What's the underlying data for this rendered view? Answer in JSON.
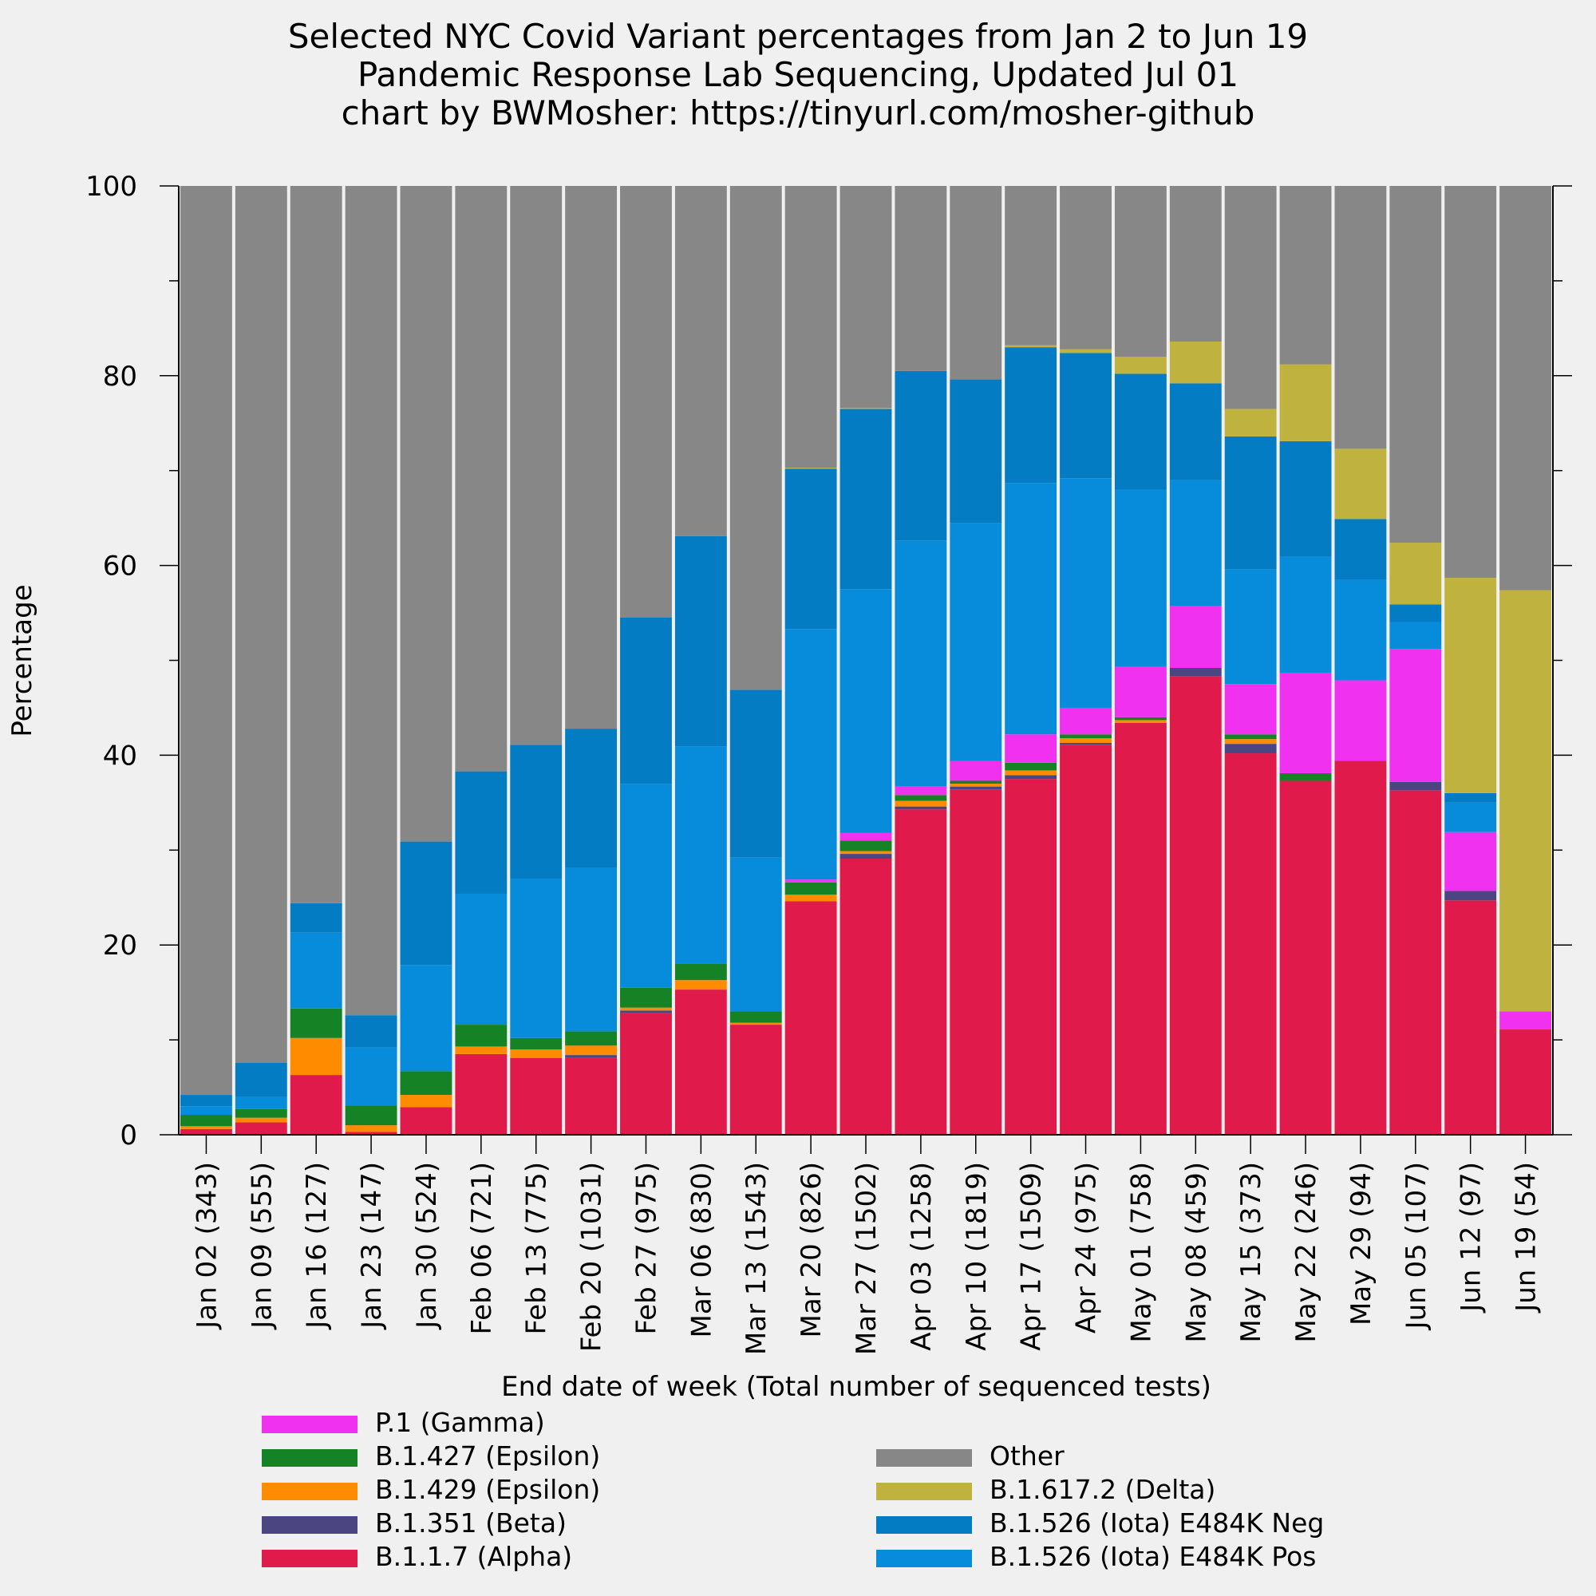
{
  "title": {
    "line1": "Selected NYC Covid Variant percentages from Jan 2 to Jun 19",
    "line2": "Pandemic Response Lab Sequencing, Updated Jul 01",
    "line3": "chart by BWMosher: https://tinyurl.com/mosher-github"
  },
  "chart_data": {
    "type": "bar",
    "stacked": true,
    "xlabel": "End date of week (Total number of sequenced tests)",
    "ylabel": "Percentage",
    "ylim": [
      0,
      100
    ],
    "yticks": [
      "0",
      "20",
      "40",
      "60",
      "80",
      "100"
    ],
    "grid": false,
    "legend_position": "bottom",
    "categories": [
      "Jan 02 (343)",
      "Jan 09 (555)",
      "Jan 16 (127)",
      "Jan 23 (147)",
      "Jan 30 (524)",
      "Feb 06 (721)",
      "Feb 13 (775)",
      "Feb 20 (1031)",
      "Feb 27 (975)",
      "Mar 06 (830)",
      "Mar 13 (1543)",
      "Mar 20 (826)",
      "Mar 27 (1502)",
      "Apr 03 (1258)",
      "Apr 10 (1819)",
      "Apr 17 (1509)",
      "Apr 24 (975)",
      "May 01 (758)",
      "May 08 (459)",
      "May 15 (373)",
      "May 22 (246)",
      "May 29 (94)",
      "Jun 05 (107)",
      "Jun 12 (97)",
      "Jun 19 (54)"
    ],
    "series": [
      {
        "name": "B.1.1.7 (Alpha)",
        "color": "#e01b4c",
        "values": [
          0.6,
          1.3,
          6.3,
          0.3,
          2.9,
          8.5,
          8.1,
          8.1,
          12.8,
          15.3,
          11.6,
          24.6,
          29.1,
          34.3,
          36.4,
          37.5,
          41.1,
          43.4,
          48.3,
          40.2,
          37.3,
          39.4,
          36.3,
          24.7,
          11.1
        ]
      },
      {
        "name": "B.1.351 (Beta)",
        "color": "#4b4682",
        "values": [
          0.0,
          0.0,
          0.0,
          0.0,
          0.0,
          0.0,
          0.0,
          0.3,
          0.3,
          0.0,
          0.0,
          0.0,
          0.5,
          0.3,
          0.3,
          0.4,
          0.2,
          0.0,
          0.9,
          1.0,
          0.0,
          0.0,
          0.9,
          1.0,
          0.0
        ]
      },
      {
        "name": "B.1.429 (Epsilon)",
        "color": "#ff8c00",
        "values": [
          0.3,
          0.5,
          3.9,
          0.7,
          1.3,
          0.8,
          0.9,
          1.0,
          0.3,
          1.0,
          0.2,
          0.7,
          0.3,
          0.6,
          0.3,
          0.5,
          0.5,
          0.3,
          0.0,
          0.5,
          0.0,
          0.0,
          0.0,
          0.0,
          0.0
        ]
      },
      {
        "name": "B.1.427 (Epsilon)",
        "color": "#148225",
        "values": [
          1.2,
          0.9,
          3.1,
          2.1,
          2.5,
          2.3,
          1.2,
          1.5,
          2.1,
          1.7,
          1.2,
          1.3,
          1.1,
          0.6,
          0.3,
          0.8,
          0.4,
          0.3,
          0.0,
          0.5,
          0.8,
          0.0,
          0.0,
          0.0,
          0.0
        ]
      },
      {
        "name": "P.1 (Gamma)",
        "color": "#f032f0",
        "values": [
          0.0,
          0.0,
          0.0,
          0.0,
          0.0,
          0.0,
          0.0,
          0.0,
          0.0,
          0.0,
          0.0,
          0.3,
          0.8,
          0.9,
          2.1,
          3.0,
          2.8,
          5.3,
          6.5,
          5.3,
          10.6,
          8.5,
          14.0,
          6.2,
          1.9
        ]
      },
      {
        "name": "B.1.526 (Iota) E484K Pos",
        "color": "#068cda",
        "values": [
          0.9,
          1.3,
          8.0,
          6.1,
          11.2,
          13.8,
          16.8,
          17.2,
          21.5,
          22.9,
          16.2,
          26.4,
          25.7,
          25.9,
          25.1,
          26.5,
          24.2,
          18.7,
          13.3,
          12.1,
          12.2,
          10.6,
          2.8,
          3.1,
          0.0
        ]
      },
      {
        "name": "B.1.526 (Iota) E484K Neg",
        "color": "#047cc4",
        "values": [
          1.2,
          3.6,
          3.1,
          3.4,
          13.0,
          12.9,
          14.1,
          14.7,
          17.5,
          22.2,
          17.7,
          16.9,
          19.0,
          17.9,
          15.1,
          14.3,
          13.2,
          12.2,
          10.2,
          14.0,
          12.2,
          6.4,
          1.9,
          1.0,
          0.0
        ]
      },
      {
        "name": "B.1.617.2 (Delta)",
        "color": "#bfb23f",
        "values": [
          0.0,
          0.0,
          0.0,
          0.0,
          0.0,
          0.0,
          0.0,
          0.0,
          0.0,
          0.0,
          0.0,
          0.1,
          0.1,
          0.0,
          0.0,
          0.2,
          0.4,
          1.8,
          4.4,
          2.9,
          8.1,
          7.4,
          6.5,
          22.7,
          44.4
        ]
      },
      {
        "name": "Other",
        "color": "#878787",
        "values": [
          95.8,
          92.4,
          75.6,
          87.4,
          69.1,
          61.7,
          58.9,
          57.2,
          45.5,
          36.9,
          53.1,
          29.7,
          23.4,
          19.5,
          20.4,
          16.8,
          17.2,
          18.0,
          16.4,
          23.5,
          18.8,
          27.7,
          37.6,
          41.3,
          42.6
        ]
      }
    ]
  },
  "legend": {
    "left": [
      {
        "label": "P.1 (Gamma)",
        "color": "#f032f0"
      },
      {
        "label": "B.1.427 (Epsilon)",
        "color": "#148225"
      },
      {
        "label": "B.1.429 (Epsilon)",
        "color": "#ff8c00"
      },
      {
        "label": "B.1.351 (Beta)",
        "color": "#4b4682"
      },
      {
        "label": "B.1.1.7 (Alpha)",
        "color": "#e01b4c"
      }
    ],
    "right": [
      {
        "label": "Other",
        "color": "#878787"
      },
      {
        "label": "B.1.617.2 (Delta)",
        "color": "#bfb23f"
      },
      {
        "label": "B.1.526 (Iota) E484K Neg",
        "color": "#047cc4"
      },
      {
        "label": "B.1.526 (Iota) E484K Pos",
        "color": "#068cda"
      }
    ]
  }
}
